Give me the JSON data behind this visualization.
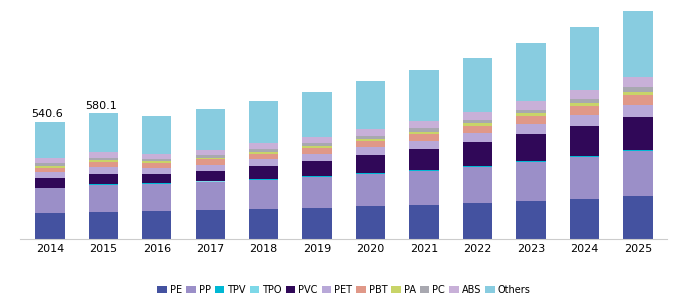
{
  "years": [
    2014,
    2015,
    2016,
    2017,
    2018,
    2019,
    2020,
    2021,
    2022,
    2023,
    2024,
    2025
  ],
  "segments": [
    "PE",
    "PP",
    "TPV",
    "TPO",
    "PVC",
    "PET",
    "PBT",
    "PA",
    "PC",
    "ABS",
    "Others"
  ],
  "colors": [
    "#4452a0",
    "#9b8fc8",
    "#00b8d4",
    "#7dd8e8",
    "#300858",
    "#b8a8d8",
    "#e09888",
    "#c8d468",
    "#a8a8b0",
    "#c8b0d8",
    "#88cce0"
  ],
  "data": {
    "PE": [
      120,
      128,
      130,
      134,
      139,
      145,
      152,
      159,
      167,
      177,
      188,
      200
    ],
    "PP": [
      115,
      124,
      126,
      130,
      136,
      143,
      150,
      158,
      168,
      180,
      193,
      208
    ],
    "TPV": [
      2,
      2,
      2,
      2,
      2,
      2,
      2,
      2,
      2,
      2,
      2,
      2
    ],
    "TPO": [
      2,
      2,
      2,
      2,
      2,
      2,
      2,
      2,
      2,
      2,
      2,
      2
    ],
    "PVC": [
      42,
      46,
      42,
      47,
      58,
      68,
      82,
      96,
      110,
      125,
      138,
      153
    ],
    "PET": [
      28,
      30,
      28,
      30,
      32,
      34,
      36,
      38,
      40,
      44,
      48,
      52
    ],
    "PBT": [
      22,
      24,
      22,
      24,
      26,
      28,
      30,
      32,
      35,
      38,
      42,
      46
    ],
    "PA": [
      8,
      8,
      7,
      8,
      9,
      9,
      10,
      10,
      11,
      12,
      14,
      15
    ],
    "PC": [
      12,
      13,
      11,
      12,
      13,
      14,
      14,
      15,
      16,
      18,
      20,
      22
    ],
    "ABS": [
      22,
      24,
      22,
      24,
      26,
      28,
      30,
      32,
      35,
      38,
      42,
      46
    ],
    "Others": [
      167.6,
      179.1,
      175,
      186,
      195,
      208,
      220,
      234,
      250,
      268,
      288,
      308
    ]
  },
  "annotation_2014": "540.6",
  "annotation_2015": "580.1",
  "ylim": [
    0,
    1060
  ],
  "background_color": "#ffffff",
  "annotation_fontsize": 8,
  "legend_fontsize": 7,
  "tick_fontsize": 8
}
